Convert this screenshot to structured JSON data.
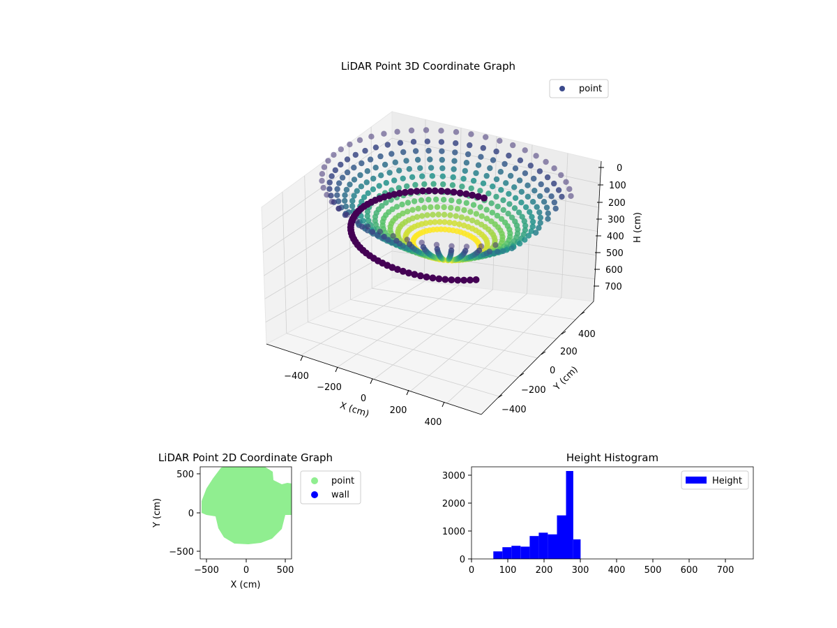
{
  "chart_data": [
    {
      "type": "scatter",
      "title": "LiDAR Point 3D Coordinate Graph",
      "xlabel": "X (cm)",
      "ylabel": "Y (cm)",
      "zlabel": "H (cm)",
      "x_ticks": [
        "−400",
        "−200",
        "0",
        "200",
        "400"
      ],
      "y_ticks": [
        "−400",
        "−200",
        "0",
        "200",
        "400"
      ],
      "z_ticks": [
        "0",
        "100",
        "200",
        "300",
        "400",
        "500",
        "600",
        "700"
      ],
      "xlim": [
        -560,
        560
      ],
      "ylim": [
        -560,
        560
      ],
      "zlim": [
        760,
        0
      ],
      "z_inverted": true,
      "colormap": "viridis",
      "legend": {
        "label": "point",
        "color": "#3b4a8c",
        "position": "upper-right"
      },
      "series": [
        {
          "name": "point",
          "shape": "inverted dome",
          "radius_top": 560,
          "radius_bottom": 150,
          "z_top": 0,
          "z_bottom": 300
        }
      ]
    },
    {
      "type": "scatter",
      "title": "LiDAR Point 2D Coordinate Graph",
      "xlabel": "X (cm)",
      "ylabel": "Y (cm)",
      "x_ticks": [
        "−500",
        "0",
        "500"
      ],
      "y_ticks": [
        "500",
        "0",
        "−500"
      ],
      "xlim": [
        -580,
        580
      ],
      "ylim": [
        -580,
        580
      ],
      "legend": {
        "position": "outside-right"
      },
      "series": [
        {
          "name": "point",
          "color": "#90ee90"
        },
        {
          "name": "wall",
          "color": "#0000ff"
        }
      ]
    },
    {
      "type": "bar",
      "title": "Height Histogram",
      "x_ticks": [
        "0",
        "100",
        "200",
        "300",
        "400",
        "500",
        "600",
        "700"
      ],
      "y_ticks": [
        "0",
        "1000",
        "2000",
        "3000"
      ],
      "xlim": [
        0,
        775
      ],
      "ylim": [
        0,
        3300
      ],
      "color": "#0000ff",
      "legend": {
        "label": "Height",
        "position": "upper-right"
      },
      "bins": [
        {
          "x0": 60,
          "x1": 85,
          "count": 270
        },
        {
          "x0": 85,
          "x1": 110,
          "count": 420
        },
        {
          "x0": 110,
          "x1": 135,
          "count": 470
        },
        {
          "x0": 135,
          "x1": 160,
          "count": 440
        },
        {
          "x0": 160,
          "x1": 185,
          "count": 820
        },
        {
          "x0": 185,
          "x1": 210,
          "count": 940
        },
        {
          "x0": 210,
          "x1": 235,
          "count": 880
        },
        {
          "x0": 235,
          "x1": 260,
          "count": 1560
        },
        {
          "x0": 260,
          "x1": 280,
          "count": 3150
        },
        {
          "x0": 280,
          "x1": 300,
          "count": 700
        }
      ]
    }
  ]
}
